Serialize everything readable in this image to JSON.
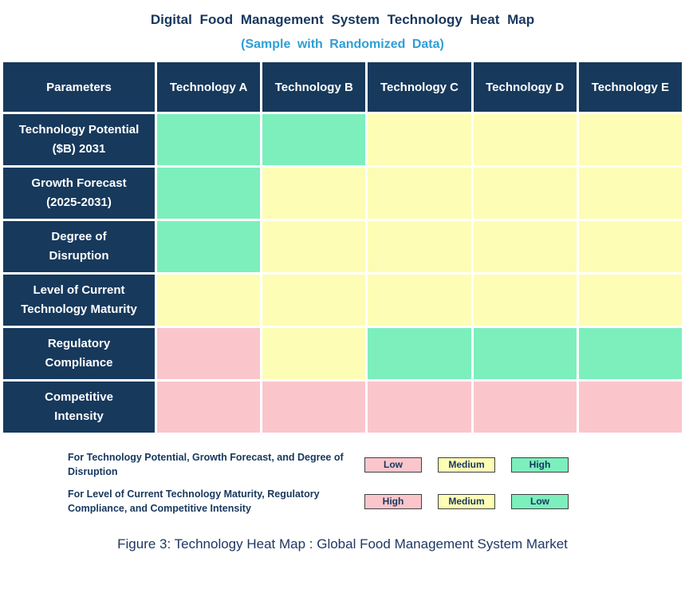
{
  "title": "Digital Food Management System Technology Heat Map",
  "subtitle": "(Sample with Randomized Data)",
  "caption": "Figure 3: Technology Heat Map : Global Food Management System Market",
  "colors": {
    "header_bg": "#17395C",
    "title_text": "#17375E",
    "subtitle_text": "#2E9FD6",
    "legend_text": "#17375E",
    "caption_text": "#1F3864",
    "swatch_border": "#404040"
  },
  "chart_data": {
    "type": "heatmap",
    "title": "Digital Food Management System Technology Heat Map",
    "row_header": "Parameters",
    "columns": [
      "Technology A",
      "Technology B",
      "Technology C",
      "Technology D",
      "Technology E"
    ],
    "color_levels": {
      "green": "#7CEFBD",
      "yellow": "#FDFDB6",
      "pink": "#FAC6CC"
    },
    "rows": [
      {
        "parameter": "Technology Potential\n($B) 2031",
        "cells": [
          "green",
          "green",
          "yellow",
          "yellow",
          "yellow"
        ]
      },
      {
        "parameter": "Growth Forecast\n(2025-2031)",
        "cells": [
          "green",
          "yellow",
          "yellow",
          "yellow",
          "yellow"
        ]
      },
      {
        "parameter": "Degree of\nDisruption",
        "cells": [
          "green",
          "yellow",
          "yellow",
          "yellow",
          "yellow"
        ]
      },
      {
        "parameter": "Level of Current\nTechnology Maturity",
        "cells": [
          "yellow",
          "yellow",
          "yellow",
          "yellow",
          "yellow"
        ]
      },
      {
        "parameter": "Regulatory\nCompliance",
        "cells": [
          "pink",
          "yellow",
          "green",
          "green",
          "green"
        ]
      },
      {
        "parameter": "Competitive\nIntensity",
        "cells": [
          "pink",
          "pink",
          "pink",
          "pink",
          "pink"
        ]
      }
    ]
  },
  "legend": {
    "groups": [
      {
        "label": "For Technology Potential, Growth Forecast, and Degree of Disruption",
        "items": [
          {
            "text": "Low",
            "color": "pink"
          },
          {
            "text": "Medium",
            "color": "yellow"
          },
          {
            "text": "High",
            "color": "green"
          }
        ]
      },
      {
        "label": "For Level of Current Technology Maturity, Regulatory Compliance, and Competitive Intensity",
        "items": [
          {
            "text": "High",
            "color": "pink"
          },
          {
            "text": "Medium",
            "color": "yellow"
          },
          {
            "text": "Low",
            "color": "green"
          }
        ]
      }
    ]
  }
}
